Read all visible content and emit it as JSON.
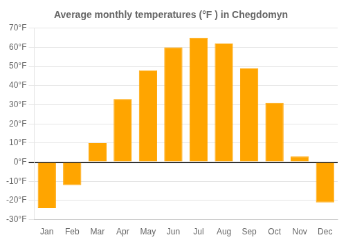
{
  "chart_data": {
    "type": "bar",
    "title": "Average monthly temperatures (°F ) in Chegdomyn",
    "categories": [
      "Jan",
      "Feb",
      "Mar",
      "Apr",
      "May",
      "Jun",
      "Jul",
      "Aug",
      "Sep",
      "Oct",
      "Nov",
      "Dec"
    ],
    "values": [
      -24,
      -12,
      10,
      33,
      48,
      60,
      65,
      62,
      49,
      31,
      3,
      -21
    ],
    "color": "#FFA500",
    "ylim": [
      -30,
      70
    ],
    "yticks": [
      {
        "value": -30,
        "label": "-30°F"
      },
      {
        "value": -20,
        "label": "-20°F"
      },
      {
        "value": -10,
        "label": "-10°F"
      },
      {
        "value": 0,
        "label": "0°F"
      },
      {
        "value": 10,
        "label": "10°F"
      },
      {
        "value": 20,
        "label": "20°F"
      },
      {
        "value": 30,
        "label": "30°F"
      },
      {
        "value": 40,
        "label": "40°F"
      },
      {
        "value": 50,
        "label": "50°F"
      },
      {
        "value": 60,
        "label": "60°F"
      },
      {
        "value": 70,
        "label": "70°F"
      }
    ],
    "grid": true
  }
}
